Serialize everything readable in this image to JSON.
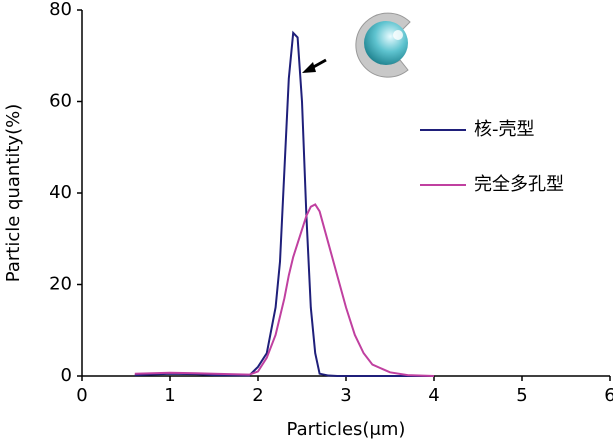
{
  "chart_data": {
    "type": "line",
    "x_label": "Particles(μm)",
    "y_label": "Particle quantity(%)",
    "x": [
      0.6,
      1.0,
      1.3,
      1.5,
      1.9,
      2.0,
      2.1,
      2.2,
      2.25,
      2.3,
      2.35,
      2.4,
      2.45,
      2.5,
      2.55,
      2.6,
      2.65,
      2.7,
      2.8,
      2.9,
      3.0,
      3.1,
      3.2,
      3.3,
      3.5,
      3.7,
      4.0
    ],
    "series": [
      {
        "name": "核-壳型",
        "color": "#1f1f7a",
        "values": [
          0.2,
          0.5,
          0.4,
          0.2,
          0.1,
          2,
          5,
          15,
          25,
          45,
          65,
          75,
          74,
          60,
          35,
          15,
          5,
          0.5,
          0.1,
          0,
          0,
          0,
          0,
          0,
          0,
          0,
          0
        ]
      },
      {
        "name": "完全多孔型",
        "color": "#c040a0",
        "values": [
          0.5,
          0.7,
          0.6,
          0.5,
          0.3,
          1,
          4,
          9,
          13,
          17,
          22,
          26,
          29,
          32,
          35,
          37,
          37.5,
          36,
          29,
          22,
          15,
          9,
          5,
          2.5,
          0.8,
          0.2,
          0
        ]
      }
    ],
    "xlim": [
      0,
      6
    ],
    "xticks": [
      0,
      1,
      2,
      3,
      4,
      5,
      6
    ],
    "ylim": [
      0,
      80
    ],
    "yticks": [
      0,
      20,
      40,
      60,
      80
    ],
    "grid": false,
    "legend": "right"
  }
}
